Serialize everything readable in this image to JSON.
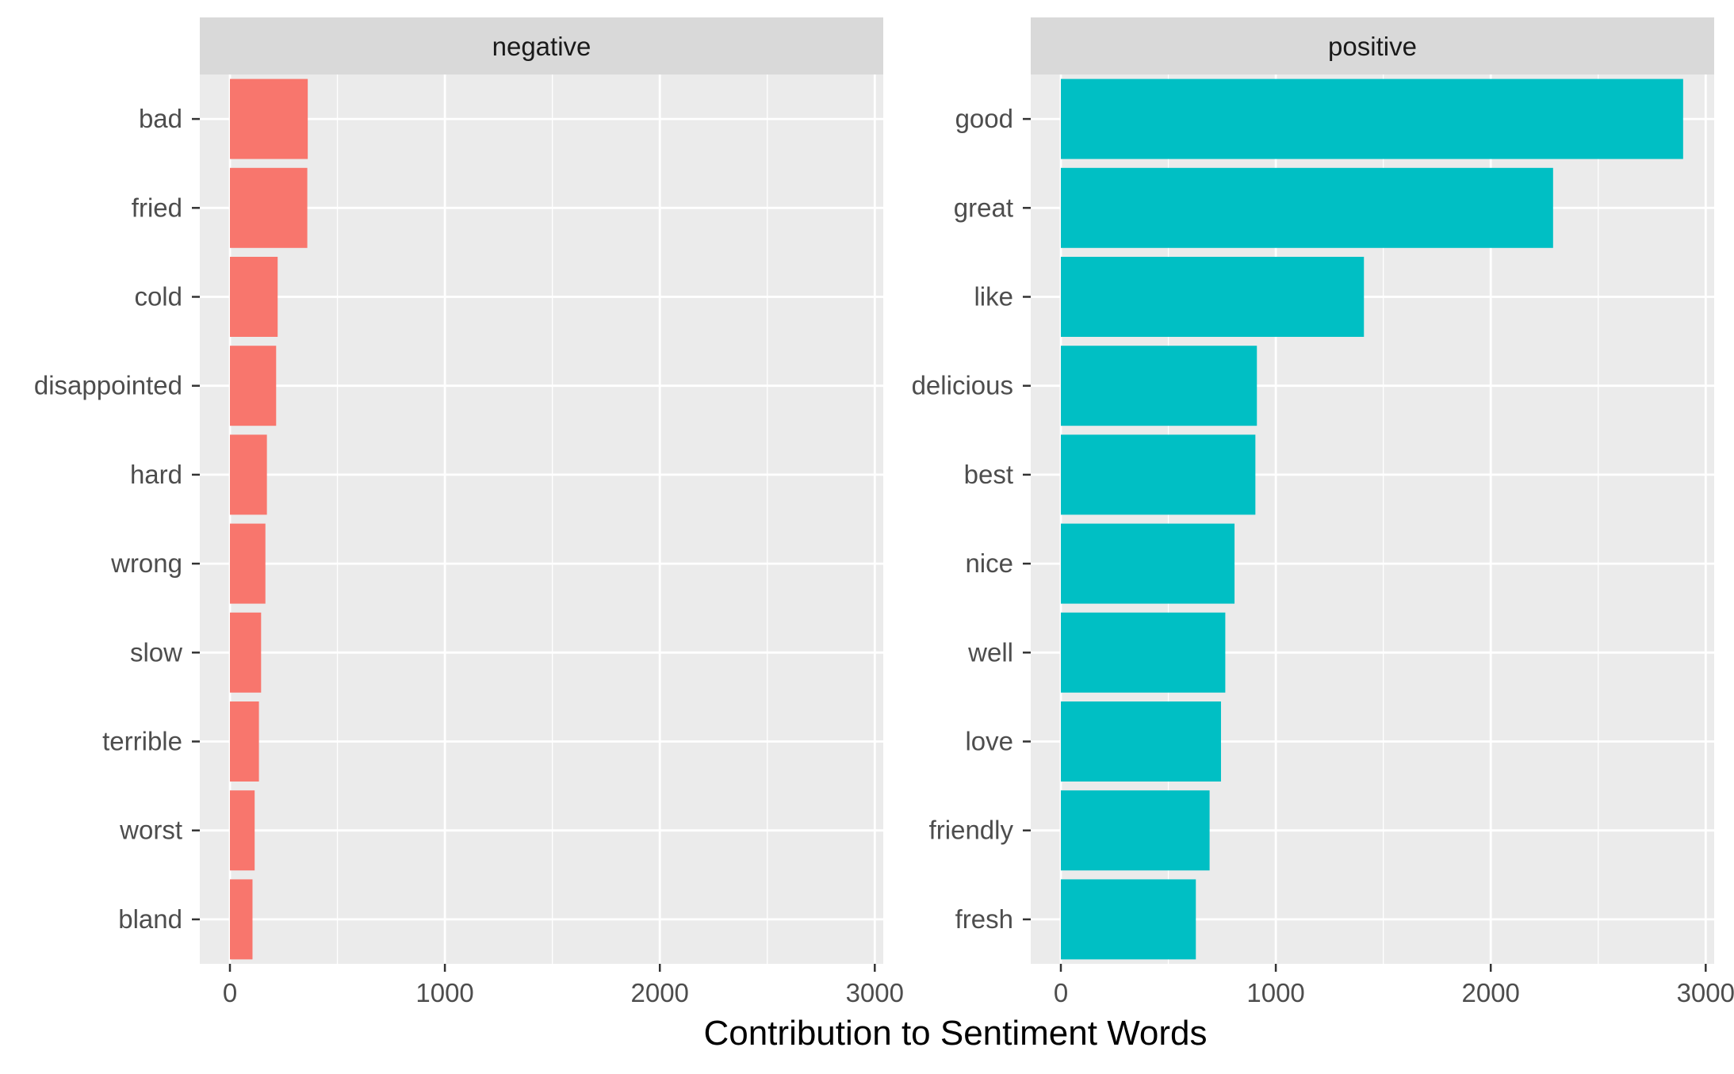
{
  "chart_data": {
    "type": "bar",
    "orientation": "horizontal",
    "xlabel": "Contribution to Sentiment Words",
    "xlim": [
      0,
      3000
    ],
    "xticks": [
      0,
      1000,
      2000,
      3000
    ],
    "xtick_labels": [
      "0",
      "1000",
      "2000",
      "3000"
    ],
    "grid": true,
    "panels": [
      {
        "name": "negative",
        "color": "#F8766D",
        "categories": [
          "bad",
          "fried",
          "cold",
          "disappointed",
          "hard",
          "wrong",
          "slow",
          "terrible",
          "worst",
          "bland"
        ],
        "values": [
          362,
          360,
          222,
          215,
          172,
          165,
          145,
          135,
          115,
          105
        ]
      },
      {
        "name": "positive",
        "color": "#00BFC4",
        "categories": [
          "good",
          "great",
          "like",
          "delicious",
          "best",
          "nice",
          "well",
          "love",
          "friendly",
          "fresh"
        ],
        "values": [
          2895,
          2290,
          1410,
          912,
          905,
          808,
          765,
          745,
          692,
          628
        ]
      }
    ]
  }
}
